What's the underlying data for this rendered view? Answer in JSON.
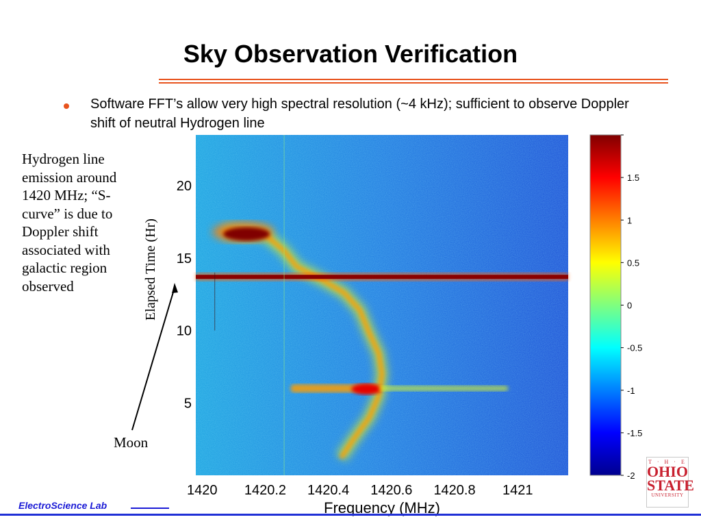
{
  "slide": {
    "title": "Sky Observation Verification",
    "bullet": "Software FFT’s allow very high spectral resolution (~4 kHz); sufficient to observe Doppler shift of neutral Hydrogen line",
    "side_note": "Hydrogen line emission around 1420 MHz; “S-curve” is due to Doppler shift associated with galactic region observed",
    "moon_label": "Moon",
    "footer_lab": "ElectroScience Lab",
    "logo": {
      "the": "T · H · E",
      "ohio": "OHIO",
      "state": "STATE",
      "university": "UNIVERSITY"
    },
    "colors": {
      "accent": "#e8531d",
      "footer_blue": "#1a1ad6",
      "logo_red": "#c8202f"
    }
  },
  "chart_data": {
    "type": "heatmap",
    "title": "",
    "xlabel": "Frequency (MHz)",
    "ylabel": "Elapsed Time (Hr)",
    "xlim": [
      1419.98,
      1421.16
    ],
    "ylim": [
      0,
      23.5
    ],
    "xticks": [
      1420,
      1420.2,
      1420.4,
      1420.6,
      1420.8,
      1421
    ],
    "xtick_labels": [
      "1420",
      "1420.2",
      "1420.4",
      "1420.6",
      "1420.8",
      "1421"
    ],
    "yticks": [
      5,
      10,
      15,
      20
    ],
    "ytick_labels": [
      "5",
      "10",
      "15",
      "20"
    ],
    "colorbar": {
      "range": [
        -2,
        2
      ],
      "ticks": [
        1.5,
        1,
        0.5,
        0,
        -0.5,
        -1,
        -1.5,
        -2
      ],
      "tick_labels": [
        "1.5",
        "1",
        "0.5",
        "0",
        "-0.5",
        "-1",
        "-1.5",
        "-2"
      ],
      "colormap": "jet"
    },
    "features": [
      {
        "kind": "s-curve",
        "points": [
          [
            1420.07,
            16.8
          ],
          [
            1420.2,
            16.6
          ],
          [
            1420.26,
            15.5
          ],
          [
            1420.3,
            14.4
          ],
          [
            1420.38,
            13.5
          ],
          [
            1420.45,
            12.6
          ],
          [
            1420.5,
            11.4
          ],
          [
            1420.53,
            9.8
          ],
          [
            1420.56,
            8.4
          ],
          [
            1420.57,
            7.0
          ],
          [
            1420.56,
            5.5
          ],
          [
            1420.53,
            4.0
          ],
          [
            1420.48,
            2.5
          ],
          [
            1420.44,
            1.2
          ]
        ]
      },
      {
        "kind": "horizontal-band",
        "y": 13.7,
        "xrange": [
          1419.98,
          1421.16
        ],
        "value": 2
      },
      {
        "kind": "horizontal-streak",
        "y": 6.0,
        "xrange": [
          1420.28,
          1420.56
        ],
        "value": 1.6
      },
      {
        "kind": "faint-streak",
        "y": 6.0,
        "xrange": [
          1420.56,
          1420.97
        ],
        "value": 0.4
      },
      {
        "kind": "blob",
        "x": 1420.13,
        "y": 16.8,
        "value": 2
      }
    ]
  }
}
